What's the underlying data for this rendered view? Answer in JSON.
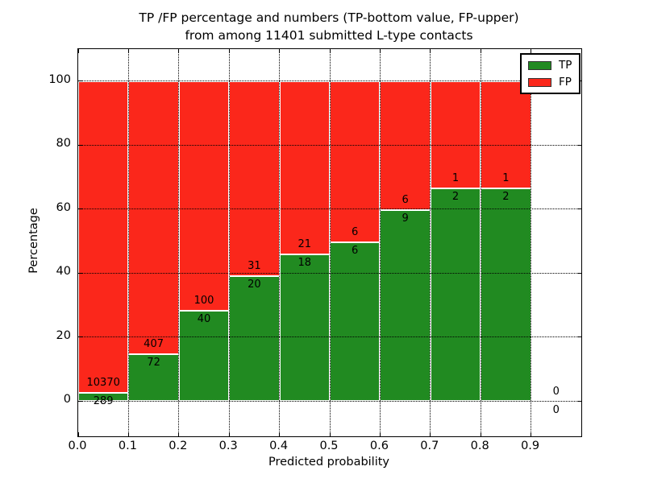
{
  "figure": {
    "title_line1": "TP /FP percentage and numbers (TP-bottom value, FP-upper)",
    "title_line2": "from among 11401 submitted L-type contacts",
    "xlabel": "Predicted probability",
    "ylabel": "Percentage",
    "background_color": "#ffffff"
  },
  "legend": {
    "position": "upper right",
    "items": [
      {
        "label": "TP",
        "color": "#218a21"
      },
      {
        "label": "FP",
        "color": "#fb271b"
      }
    ]
  },
  "chart_data": {
    "type": "bar",
    "stacked": true,
    "normalized_total_pct": 100,
    "title": "TP /FP percentage and numbers (TP-bottom value, FP-upper) from among 11401 submitted L-type contacts",
    "xlabel": "Predicted probability",
    "ylabel": "Percentage",
    "total_contacts": 11401,
    "grid": "dotted",
    "xlim": [
      0.0,
      1.0
    ],
    "ylim": [
      -11,
      110
    ],
    "x_ticks": [
      0.0,
      0.1,
      0.2,
      0.3,
      0.4,
      0.5,
      0.6,
      0.7,
      0.8,
      0.9
    ],
    "x_tick_labels": [
      "0.0",
      "0.1",
      "0.2",
      "0.3",
      "0.4",
      "0.5",
      "0.6",
      "0.7",
      "0.8",
      "0.9"
    ],
    "y_ticks": [
      0,
      20,
      40,
      60,
      80,
      100
    ],
    "y_tick_labels": [
      "0",
      "20",
      "40",
      "60",
      "80",
      "100"
    ],
    "colors": {
      "tp": "#218a21",
      "fp": "#fb271b"
    },
    "bins": [
      {
        "range": [
          0.0,
          0.1
        ],
        "tp": 289,
        "fp": 10370,
        "tp_pct": 2.7,
        "fp_pct": 97.3
      },
      {
        "range": [
          0.1,
          0.2
        ],
        "tp": 72,
        "fp": 407,
        "tp_pct": 15.0,
        "fp_pct": 85.0
      },
      {
        "range": [
          0.2,
          0.3
        ],
        "tp": 40,
        "fp": 100,
        "tp_pct": 28.6,
        "fp_pct": 71.4
      },
      {
        "range": [
          0.3,
          0.4
        ],
        "tp": 20,
        "fp": 31,
        "tp_pct": 39.2,
        "fp_pct": 60.8
      },
      {
        "range": [
          0.4,
          0.5
        ],
        "tp": 18,
        "fp": 21,
        "tp_pct": 46.2,
        "fp_pct": 53.8
      },
      {
        "range": [
          0.5,
          0.6
        ],
        "tp": 6,
        "fp": 6,
        "tp_pct": 50.0,
        "fp_pct": 50.0
      },
      {
        "range": [
          0.6,
          0.7
        ],
        "tp": 9,
        "fp": 6,
        "tp_pct": 60.0,
        "fp_pct": 40.0
      },
      {
        "range": [
          0.7,
          0.8
        ],
        "tp": 2,
        "fp": 1,
        "tp_pct": 66.7,
        "fp_pct": 33.3
      },
      {
        "range": [
          0.8,
          0.9
        ],
        "tp": 2,
        "fp": 1,
        "tp_pct": 66.7,
        "fp_pct": 33.3
      },
      {
        "range": [
          0.9,
          1.0
        ],
        "tp": 0,
        "fp": 0,
        "tp_pct": null,
        "fp_pct": null
      }
    ]
  }
}
